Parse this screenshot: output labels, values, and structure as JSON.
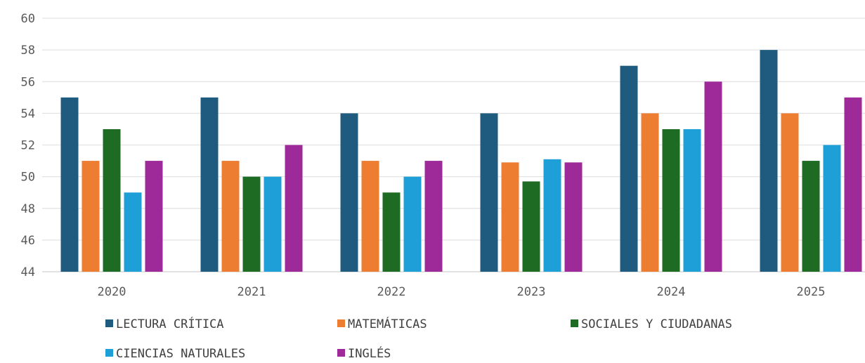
{
  "chart_data": {
    "type": "bar",
    "categories": [
      "2020",
      "2021",
      "2022",
      "2023",
      "2024",
      "2025"
    ],
    "ylim": [
      44,
      60
    ],
    "yticks": [
      "44",
      "46",
      "48",
      "50",
      "52",
      "54",
      "56",
      "58",
      "60"
    ],
    "grid": true,
    "legend_position": "bottom",
    "series": [
      {
        "name": "LECTURA CRÍTICA",
        "color": "#1f5b7f",
        "values": [
          55,
          55,
          54,
          54,
          57,
          58
        ]
      },
      {
        "name": "MATEMÁTICAS",
        "color": "#ed7d31",
        "values": [
          51,
          51,
          51,
          50.9,
          54,
          54
        ]
      },
      {
        "name": "SOCIALES Y CIUDADANAS",
        "color": "#1e6b23",
        "values": [
          53,
          50,
          49,
          49.7,
          53,
          51
        ]
      },
      {
        "name": "CIENCIAS NATURALES",
        "color": "#1f9fd8",
        "values": [
          49,
          50,
          50,
          51.1,
          53,
          52
        ]
      },
      {
        "name": "INGLÉS",
        "color": "#9e2a9a",
        "values": [
          51,
          52,
          51,
          50.9,
          56,
          55
        ]
      }
    ]
  }
}
